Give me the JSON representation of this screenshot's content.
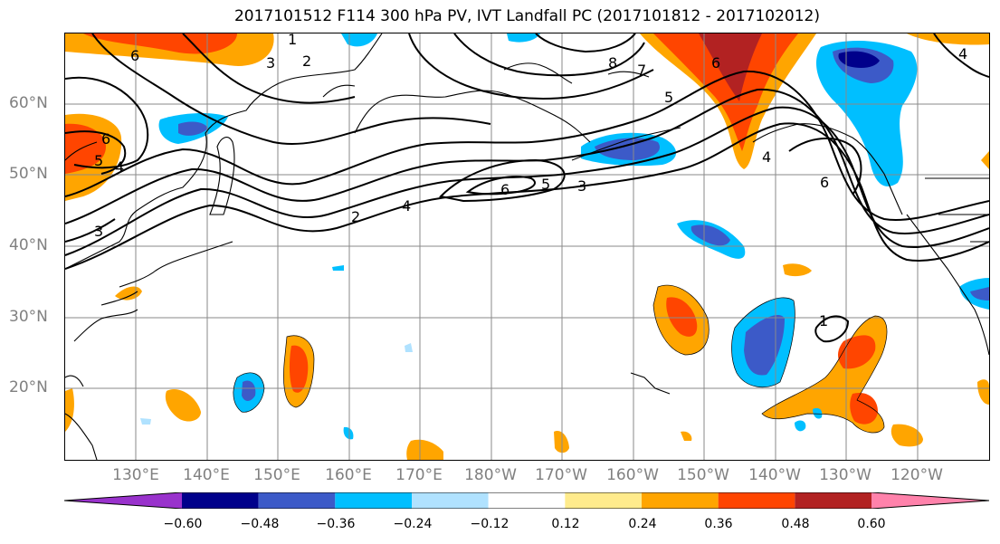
{
  "title": "2017101512 F114 300 hPa PV, IVT Landfall PC (2017101812 - 2017102012)",
  "map": {
    "lat_labels": [
      "60°N",
      "50°N",
      "40°N",
      "30°N",
      "20°N"
    ],
    "lon_labels": [
      "130°E",
      "140°E",
      "150°E",
      "160°E",
      "170°E",
      "180°W",
      "170°W",
      "160°W",
      "150°W",
      "140°W",
      "130°W",
      "120°W"
    ],
    "pv_contour_labels": [
      "1",
      "2",
      "3",
      "4",
      "5",
      "6",
      "7",
      "8"
    ]
  },
  "colorbar": {
    "colors": [
      "#9932cc",
      "#00008b",
      "#3c5ac8",
      "#00bfff",
      "#b0e2ff",
      "#ffffff",
      "#ffeb8c",
      "#ffa500",
      "#ff4500",
      "#b22222",
      "#ff82ab"
    ],
    "tick_labels": [
      "−0.60",
      "−0.48",
      "−0.36",
      "−0.24",
      "−0.12",
      "0.12",
      "0.24",
      "0.36",
      "0.48",
      "0.60"
    ]
  }
}
